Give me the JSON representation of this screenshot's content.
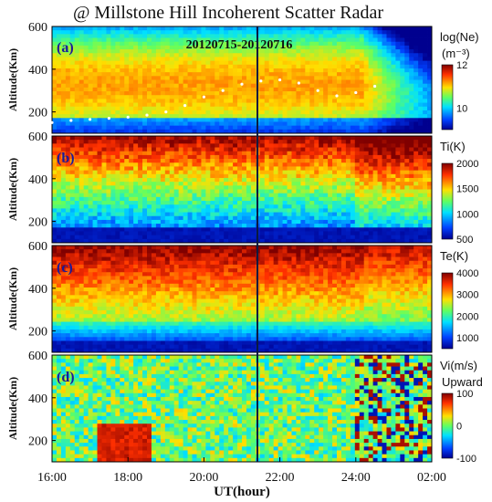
{
  "title": "@ Millstone Hill Incoherent Scatter Radar",
  "date_range": "20120715-20120716",
  "xlabel": "UT(hour)",
  "x_ticks": [
    "16:00",
    "18:00",
    "20:00",
    "22:00",
    "24:00",
    "02:00"
  ],
  "event_marker_time": "21:30",
  "panels": [
    {
      "label": "(a)",
      "ylabel": "Altitude(Km)",
      "y_ticks": [
        "200",
        "400",
        "600"
      ],
      "colorbar_title": "log(Ne)",
      "colorbar_unit": "(m⁻³)",
      "colorbar_ticks": [
        "12",
        "10"
      ],
      "clim": [
        9,
        12
      ]
    },
    {
      "label": "(b)",
      "ylabel": "Altitude(Km)",
      "y_ticks": [
        "200",
        "400",
        "600"
      ],
      "colorbar_title": "Ti(K)",
      "colorbar_unit": "",
      "colorbar_ticks": [
        "2000",
        "1500",
        "1000",
        "500"
      ],
      "clim": [
        500,
        2000
      ]
    },
    {
      "label": "(c)",
      "ylabel": "Altitude(Km)",
      "y_ticks": [
        "200",
        "400",
        "600"
      ],
      "colorbar_title": "Te(K)",
      "colorbar_unit": "",
      "colorbar_ticks": [
        "4000",
        "3000",
        "2000",
        "1000"
      ],
      "clim": [
        500,
        4000
      ]
    },
    {
      "label": "(d)",
      "ylabel": "Altitude(Km)",
      "y_ticks": [
        "200",
        "400",
        "600"
      ],
      "colorbar_title": "Vi(m/s)",
      "colorbar_unit": "Upward",
      "colorbar_ticks": [
        "100",
        "0",
        "-100"
      ],
      "clim": [
        -100,
        100
      ]
    }
  ],
  "chart_data": {
    "type": "heatmap",
    "title": "@ Millstone Hill Incoherent Scatter Radar",
    "xlabel": "UT(hour)",
    "ylabel": "Altitude(Km)",
    "xlim": [
      "16:00",
      "02:00"
    ],
    "ylim": [
      100,
      600
    ],
    "hmF2_series": {
      "x": [
        "16:00",
        "16:30",
        "17:00",
        "17:30",
        "18:00",
        "18:30",
        "19:00",
        "19:30",
        "20:00",
        "20:30",
        "21:00",
        "21:30",
        "22:00",
        "22:30",
        "23:00",
        "23:30",
        "24:00",
        "24:30"
      ],
      "y": [
        150,
        160,
        165,
        170,
        175,
        185,
        200,
        230,
        270,
        300,
        330,
        345,
        350,
        335,
        300,
        275,
        290,
        320
      ]
    }
  }
}
